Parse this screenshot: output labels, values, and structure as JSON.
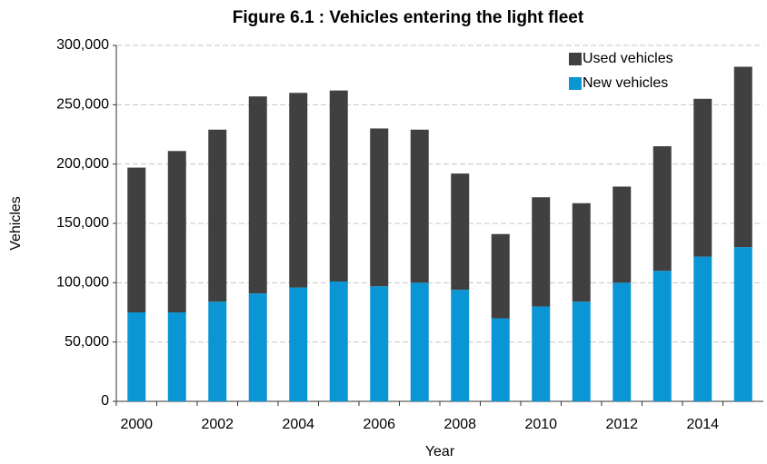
{
  "chart_data": {
    "type": "stacked_bar",
    "title": "Figure 6.1 : Vehicles entering the light fleet",
    "x_label": "Year",
    "y_label": "Vehicles",
    "categories": [
      "2000",
      null,
      "2002",
      null,
      "2004",
      null,
      "2006",
      null,
      "2008",
      null,
      "2010",
      null,
      "2012",
      null,
      "2014",
      null
    ],
    "series": [
      {
        "name": "New vehicles",
        "color": "#0a96d4",
        "values": [
          75000,
          75000,
          84000,
          91000,
          96000,
          101000,
          97000,
          100000,
          94000,
          70000,
          80000,
          84000,
          100000,
          110000,
          122000,
          130000
        ]
      },
      {
        "name": "Used vehicles",
        "color": "#404040",
        "values": [
          122000,
          136000,
          145000,
          166000,
          164000,
          161000,
          133000,
          129000,
          98000,
          71000,
          92000,
          83000,
          81000,
          105000,
          133000,
          152000
        ]
      }
    ],
    "ylim": [
      0,
      300000
    ],
    "yticks": [
      0,
      {
        "value": 50000,
        "label": "50,000"
      },
      {
        "value": 100000,
        "label": "100,000"
      },
      {
        "value": 150000,
        "label": "150,000"
      },
      {
        "value": 200000,
        "label": "200,000"
      },
      {
        "value": 250000,
        "label": "250,000"
      },
      {
        "value": 300000,
        "label": "300,000"
      }
    ],
    "grid": true,
    "legend": "top-right"
  }
}
